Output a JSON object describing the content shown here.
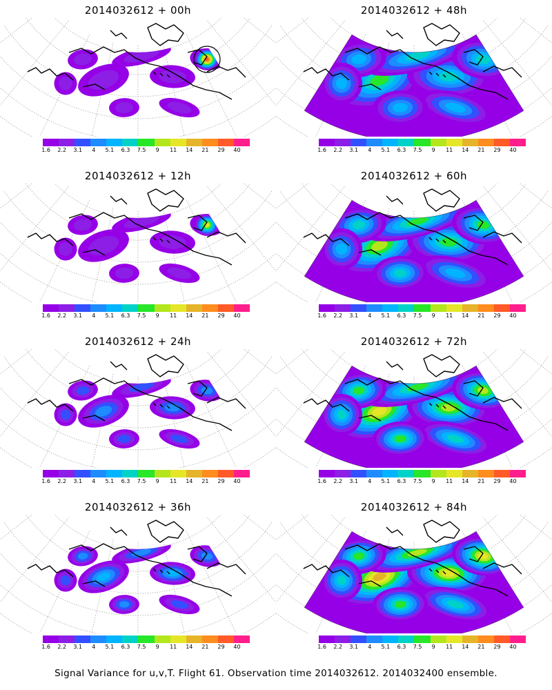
{
  "panels": [
    {
      "title": "2014032612 + 00h",
      "lead": "00h",
      "intensity": 0.05,
      "hotspot": "east-high"
    },
    {
      "title": "2014032612 + 12h",
      "lead": "12h",
      "intensity": 0.12,
      "hotspot": "east-medium"
    },
    {
      "title": "2014032612 + 24h",
      "lead": "24h",
      "intensity": 0.28,
      "hotspot": "none"
    },
    {
      "title": "2014032612 + 36h",
      "lead": "36h",
      "intensity": 0.4,
      "hotspot": "none"
    },
    {
      "title": "2014032612 + 48h",
      "lead": "48h",
      "intensity": 0.5,
      "hotspot": "none"
    },
    {
      "title": "2014032612 + 60h",
      "lead": "60h",
      "intensity": 0.62,
      "hotspot": "none"
    },
    {
      "title": "2014032612 + 72h",
      "lead": "72h",
      "intensity": 0.74,
      "hotspot": "none"
    },
    {
      "title": "2014032612 + 84h",
      "lead": "84h",
      "intensity": 0.86,
      "hotspot": "none"
    }
  ],
  "colorbar": {
    "labels": [
      "1.6",
      "2.2",
      "3.1",
      "4",
      "5.1",
      "6.3",
      "7.5",
      "9",
      "11",
      "14",
      "21",
      "29",
      "40"
    ],
    "colors": [
      "#9600e6",
      "#8c1ee6",
      "#3250ff",
      "#1e8cff",
      "#00b4ff",
      "#00d2c8",
      "#28e628",
      "#b4e61e",
      "#e6e628",
      "#e6b428",
      "#ff8c1e",
      "#ff5a28",
      "#ff1e8c"
    ]
  },
  "footer": "Signal Variance for u,v,T. Flight 61. Observation time 2014032612. 2014032400 ensemble."
}
